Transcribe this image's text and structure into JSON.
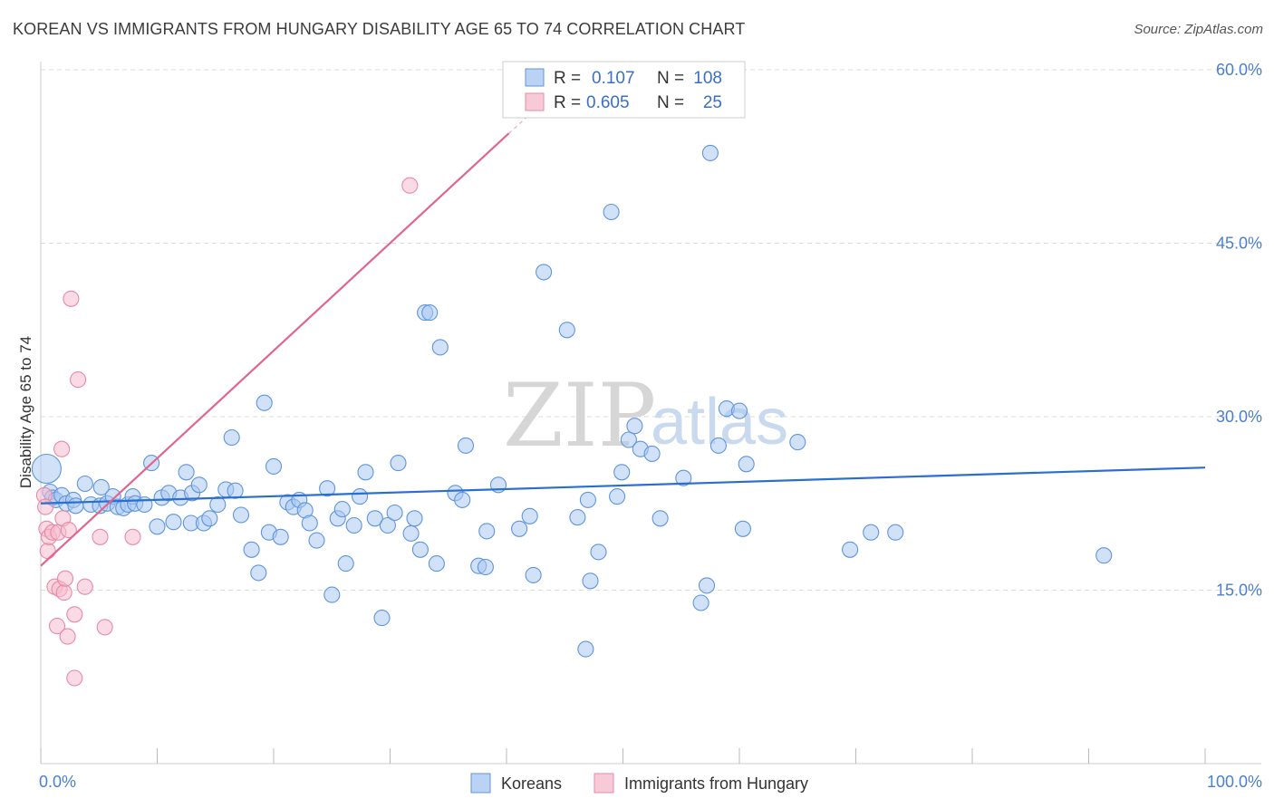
{
  "title": "KOREAN VS IMMIGRANTS FROM HUNGARY DISABILITY AGE 65 TO 74 CORRELATION CHART",
  "source": "Source: ZipAtlas.com",
  "watermark": {
    "zip": "ZIP",
    "atlas": "atlas"
  },
  "colors": {
    "blue_fill": "#a9c8f2",
    "blue_stroke": "#5f95dc",
    "blue_line": "#2a6fcf",
    "pink_fill": "#f6bccd",
    "pink_stroke": "#e88aa7",
    "pink_line": "#e0668f",
    "grid": "#dddddd",
    "axis_text": "#4a7fd0"
  },
  "legend": {
    "r_label": "R =",
    "n_label": "N =",
    "korean_r": "0.107",
    "korean_n": "108",
    "hungary_r": "0.605",
    "hungary_n": "25"
  },
  "chart_data": {
    "type": "scatter",
    "title": "KOREAN VS IMMIGRANTS FROM HUNGARY DISABILITY AGE 65 TO 74 CORRELATION CHART",
    "xlabel": "",
    "ylabel": "Disability Age 65 to 74",
    "xlim": [
      0,
      100
    ],
    "ylim": [
      0,
      63
    ],
    "x_tick_labels": [
      "0.0%",
      "100.0%"
    ],
    "y_ticks": [
      15,
      30,
      45,
      60
    ],
    "y_tick_labels": [
      "15.0%",
      "30.0%",
      "45.0%",
      "60.0%"
    ],
    "legend_position": "top-center",
    "series": [
      {
        "name": "Koreans",
        "color": "#5f95dc",
        "trend": {
          "x": [
            0,
            100
          ],
          "y": [
            22.5,
            25.6
          ]
        },
        "points": [
          [
            0.5,
            25.5
          ],
          [
            0.8,
            23.5
          ],
          [
            1.0,
            23.0
          ],
          [
            1.3,
            22.8
          ],
          [
            1.8,
            23.2
          ],
          [
            2.2,
            22.5
          ],
          [
            2.8,
            22.8
          ],
          [
            3.0,
            22.3
          ],
          [
            3.8,
            24.2
          ],
          [
            4.3,
            22.4
          ],
          [
            5.1,
            22.3
          ],
          [
            5.2,
            23.9
          ],
          [
            5.7,
            22.5
          ],
          [
            6.2,
            23.1
          ],
          [
            6.6,
            22.2
          ],
          [
            7.1,
            22.1
          ],
          [
            7.5,
            22.4
          ],
          [
            7.9,
            23.1
          ],
          [
            8.1,
            22.5
          ],
          [
            8.9,
            22.4
          ],
          [
            9.5,
            26.0
          ],
          [
            10.0,
            20.5
          ],
          [
            10.4,
            23.0
          ],
          [
            11.0,
            23.4
          ],
          [
            11.4,
            20.9
          ],
          [
            12.0,
            23.0
          ],
          [
            12.5,
            25.2
          ],
          [
            12.9,
            20.8
          ],
          [
            13.0,
            23.4
          ],
          [
            13.6,
            24.1
          ],
          [
            14.0,
            20.8
          ],
          [
            14.5,
            21.2
          ],
          [
            15.2,
            22.4
          ],
          [
            15.9,
            23.7
          ],
          [
            16.4,
            28.2
          ],
          [
            16.7,
            23.6
          ],
          [
            17.2,
            21.5
          ],
          [
            18.1,
            18.5
          ],
          [
            18.7,
            16.5
          ],
          [
            19.2,
            31.2
          ],
          [
            19.6,
            20.0
          ],
          [
            20.0,
            25.7
          ],
          [
            20.6,
            19.6
          ],
          [
            21.2,
            22.6
          ],
          [
            21.7,
            22.2
          ],
          [
            22.2,
            22.8
          ],
          [
            22.7,
            21.9
          ],
          [
            23.1,
            20.8
          ],
          [
            23.7,
            19.3
          ],
          [
            24.6,
            23.8
          ],
          [
            25.0,
            14.6
          ],
          [
            25.5,
            21.2
          ],
          [
            25.9,
            22.0
          ],
          [
            26.2,
            17.3
          ],
          [
            26.9,
            20.6
          ],
          [
            27.4,
            23.1
          ],
          [
            27.9,
            25.2
          ],
          [
            28.7,
            21.2
          ],
          [
            29.3,
            12.6
          ],
          [
            29.8,
            20.6
          ],
          [
            30.4,
            21.7
          ],
          [
            30.7,
            26.0
          ],
          [
            31.8,
            19.9
          ],
          [
            32.1,
            21.2
          ],
          [
            32.6,
            18.5
          ],
          [
            33.0,
            39.0
          ],
          [
            33.4,
            39.0
          ],
          [
            34.0,
            17.3
          ],
          [
            34.3,
            36.0
          ],
          [
            35.6,
            23.4
          ],
          [
            36.2,
            22.8
          ],
          [
            36.5,
            27.5
          ],
          [
            37.6,
            17.1
          ],
          [
            38.3,
            20.1
          ],
          [
            38.2,
            17.0
          ],
          [
            39.3,
            24.1
          ],
          [
            41.1,
            20.3
          ],
          [
            42.0,
            21.4
          ],
          [
            42.3,
            16.3
          ],
          [
            43.2,
            42.5
          ],
          [
            45.2,
            37.5
          ],
          [
            46.1,
            21.3
          ],
          [
            47.2,
            15.8
          ],
          [
            47.0,
            22.8
          ],
          [
            47.9,
            18.3
          ],
          [
            49.0,
            47.7
          ],
          [
            49.5,
            23.1
          ],
          [
            49.9,
            25.2
          ],
          [
            50.5,
            28.0
          ],
          [
            51.0,
            29.2
          ],
          [
            51.5,
            27.2
          ],
          [
            52.5,
            26.8
          ],
          [
            53.2,
            21.2
          ],
          [
            55.2,
            24.7
          ],
          [
            56.7,
            13.9
          ],
          [
            57.2,
            15.4
          ],
          [
            57.5,
            52.8
          ],
          [
            58.2,
            27.5
          ],
          [
            58.9,
            30.7
          ],
          [
            60.0,
            30.5
          ],
          [
            60.3,
            20.3
          ],
          [
            60.6,
            25.9
          ],
          [
            65.0,
            27.8
          ],
          [
            46.8,
            9.9
          ],
          [
            69.5,
            18.5
          ],
          [
            71.3,
            20.0
          ],
          [
            73.4,
            20.0
          ],
          [
            91.3,
            18.0
          ]
        ]
      },
      {
        "name": "Immigrants from Hungary",
        "color": "#e88aa7",
        "trend": {
          "x": [
            0,
            40.2
          ],
          "y": [
            17.1,
            54.5
          ]
        },
        "trend_dashed": {
          "x": [
            40.2,
            44.5
          ],
          "y": [
            54.5,
            58.4
          ]
        },
        "points": [
          [
            0.3,
            23.2
          ],
          [
            0.4,
            22.2
          ],
          [
            0.5,
            20.3
          ],
          [
            0.6,
            18.4
          ],
          [
            0.7,
            19.6
          ],
          [
            1.0,
            20.0
          ],
          [
            1.2,
            15.3
          ],
          [
            1.4,
            11.9
          ],
          [
            1.5,
            20.0
          ],
          [
            1.6,
            15.1
          ],
          [
            1.8,
            27.2
          ],
          [
            1.9,
            21.2
          ],
          [
            2.0,
            14.8
          ],
          [
            2.1,
            16.0
          ],
          [
            2.3,
            11.0
          ],
          [
            2.4,
            20.2
          ],
          [
            2.6,
            40.2
          ],
          [
            2.9,
            7.4
          ],
          [
            2.9,
            12.9
          ],
          [
            3.2,
            33.2
          ],
          [
            3.8,
            15.3
          ],
          [
            5.1,
            19.6
          ],
          [
            5.5,
            11.8
          ],
          [
            7.9,
            19.6
          ],
          [
            31.7,
            50.0
          ]
        ]
      }
    ]
  },
  "bottom_legend": {
    "korean": "Koreans",
    "hungary": "Immigrants from Hungary"
  }
}
